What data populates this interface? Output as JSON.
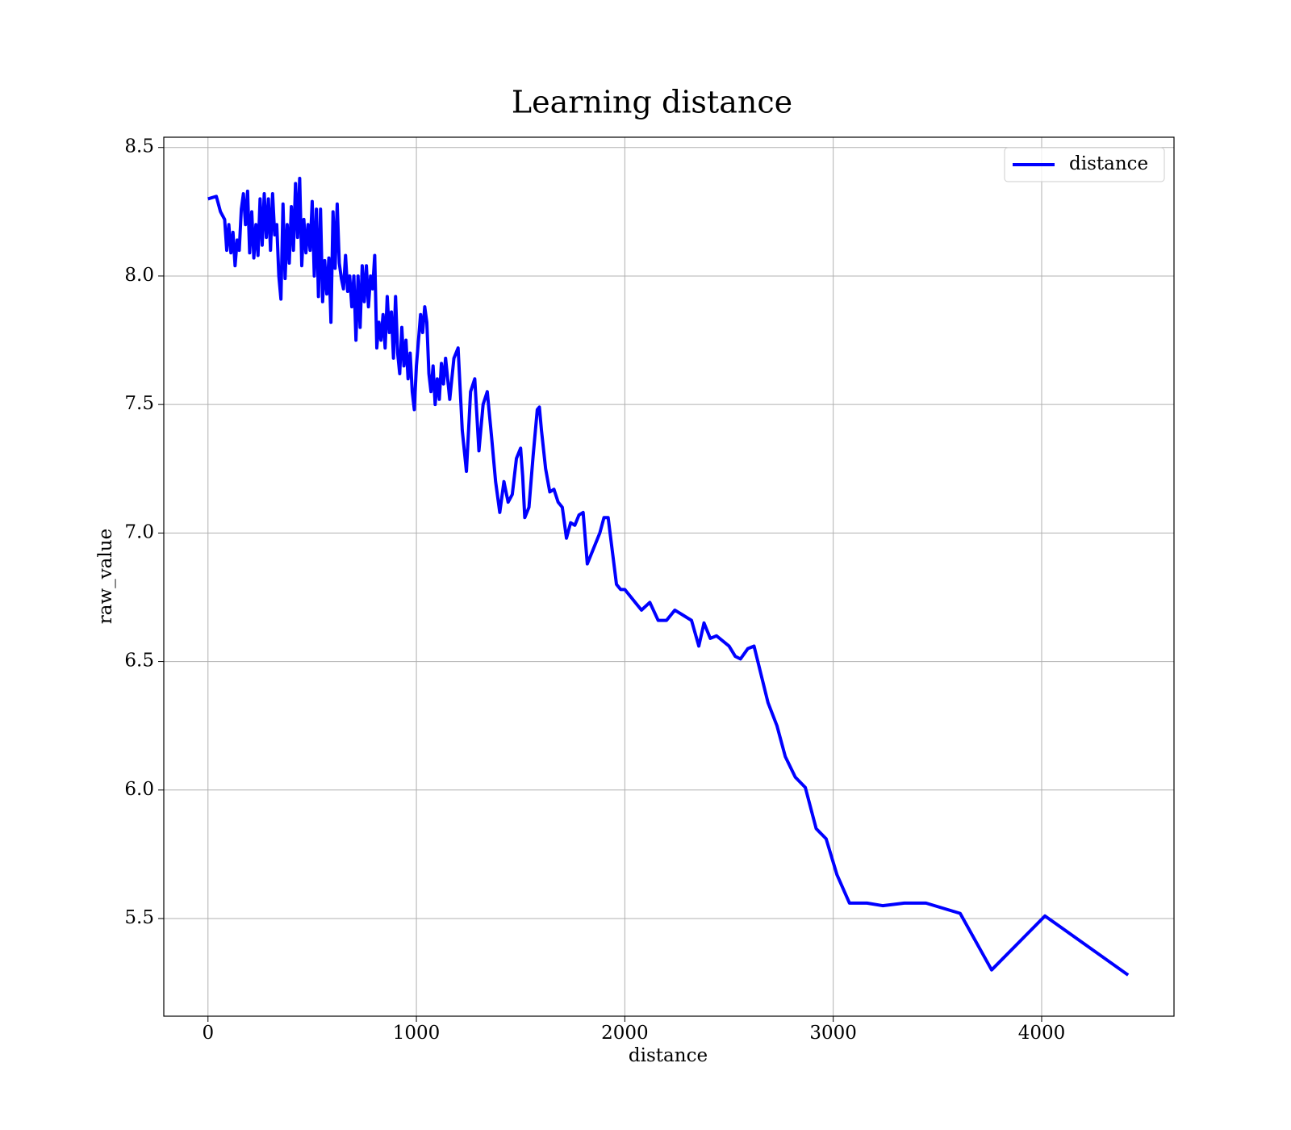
{
  "chart_data": {
    "type": "line",
    "title": "Learning distance",
    "x_label": "distance",
    "y_label": "raw_value",
    "x": [
      0,
      40,
      60,
      80,
      90,
      100,
      110,
      120,
      130,
      140,
      150,
      160,
      170,
      180,
      190,
      200,
      210,
      220,
      230,
      240,
      250,
      260,
      270,
      280,
      290,
      300,
      310,
      320,
      330,
      340,
      350,
      360,
      370,
      380,
      390,
      400,
      410,
      420,
      430,
      440,
      450,
      460,
      470,
      480,
      490,
      500,
      510,
      520,
      530,
      540,
      550,
      560,
      570,
      580,
      590,
      600,
      610,
      620,
      630,
      640,
      650,
      660,
      670,
      680,
      690,
      700,
      710,
      720,
      730,
      740,
      750,
      760,
      770,
      780,
      790,
      800,
      810,
      820,
      830,
      840,
      850,
      860,
      870,
      880,
      890,
      900,
      910,
      920,
      930,
      940,
      950,
      960,
      970,
      980,
      990,
      1000,
      1010,
      1020,
      1030,
      1040,
      1050,
      1060,
      1070,
      1080,
      1090,
      1100,
      1110,
      1120,
      1130,
      1140,
      1160,
      1180,
      1200,
      1220,
      1240,
      1260,
      1280,
      1300,
      1320,
      1340,
      1360,
      1380,
      1400,
      1420,
      1440,
      1460,
      1480,
      1500,
      1510,
      1520,
      1540,
      1560,
      1580,
      1590,
      1600,
      1620,
      1640,
      1660,
      1680,
      1700,
      1720,
      1740,
      1760,
      1780,
      1800,
      1820,
      1840,
      1860,
      1880,
      1900,
      1920,
      1960,
      1980,
      2000,
      2020,
      2050,
      2080,
      2120,
      2160,
      2200,
      2240,
      2280,
      2320,
      2355,
      2380,
      2410,
      2440,
      2500,
      2530,
      2555,
      2590,
      2620,
      2687,
      2730,
      2770,
      2818,
      2866,
      2918,
      2966,
      3018,
      3078,
      3162,
      3237,
      3341,
      3445,
      3609,
      3760,
      4016,
      4415
    ],
    "series": [
      {
        "name": "distance",
        "color": "#0000ff",
        "values": [
          8.3,
          8.31,
          8.25,
          8.22,
          8.1,
          8.2,
          8.09,
          8.17,
          8.04,
          8.14,
          8.1,
          8.26,
          8.32,
          8.2,
          8.33,
          8.09,
          8.25,
          8.07,
          8.2,
          8.08,
          8.3,
          8.12,
          8.32,
          8.15,
          8.3,
          8.1,
          8.32,
          8.16,
          8.2,
          8.0,
          7.91,
          8.28,
          7.99,
          8.2,
          8.05,
          8.27,
          8.1,
          8.36,
          8.15,
          8.38,
          8.04,
          8.22,
          8.09,
          8.2,
          8.1,
          8.29,
          8.0,
          8.26,
          7.92,
          8.26,
          7.9,
          8.06,
          7.93,
          8.07,
          7.82,
          8.25,
          8.03,
          8.28,
          8.05,
          7.99,
          7.95,
          8.08,
          7.94,
          8.0,
          7.88,
          8.0,
          7.75,
          8.0,
          7.8,
          8.04,
          7.9,
          8.04,
          7.88,
          8.0,
          7.95,
          8.08,
          7.72,
          7.82,
          7.75,
          7.85,
          7.72,
          7.92,
          7.78,
          7.86,
          7.68,
          7.92,
          7.7,
          7.62,
          7.8,
          7.65,
          7.75,
          7.6,
          7.7,
          7.55,
          7.48,
          7.65,
          7.75,
          7.85,
          7.78,
          7.88,
          7.82,
          7.62,
          7.55,
          7.65,
          7.5,
          7.6,
          7.52,
          7.66,
          7.58,
          7.68,
          7.52,
          7.68,
          7.72,
          7.4,
          7.24,
          7.55,
          7.6,
          7.32,
          7.5,
          7.55,
          7.38,
          7.2,
          7.08,
          7.2,
          7.12,
          7.15,
          7.29,
          7.33,
          7.22,
          7.06,
          7.1,
          7.3,
          7.48,
          7.49,
          7.4,
          7.25,
          7.16,
          7.17,
          7.12,
          7.1,
          6.98,
          7.04,
          7.03,
          7.07,
          7.08,
          6.88,
          6.92,
          6.96,
          7.0,
          7.06,
          7.06,
          6.8,
          6.78,
          6.78,
          6.76,
          6.73,
          6.7,
          6.73,
          6.66,
          6.66,
          6.7,
          6.68,
          6.66,
          6.56,
          6.65,
          6.59,
          6.6,
          6.56,
          6.52,
          6.51,
          6.55,
          6.56,
          6.34,
          6.25,
          6.13,
          6.05,
          6.01,
          5.85,
          5.81,
          5.67,
          5.56,
          5.56,
          5.55,
          5.56,
          5.56,
          5.52,
          5.3,
          5.51,
          5.28
        ]
      }
    ],
    "xlim": [
      -212,
      4635
    ],
    "ylim": [
      5.12,
      8.54
    ],
    "xticks": [
      0,
      1000,
      2000,
      3000,
      4000
    ],
    "yticks": [
      5.5,
      {
        "value": 6,
        "label": "6.0"
      },
      6.5,
      {
        "value": 7,
        "label": "7.0"
      },
      7.5,
      {
        "value": 8,
        "label": "8.0"
      },
      8.5
    ],
    "grid": true,
    "legend": "upper right"
  }
}
